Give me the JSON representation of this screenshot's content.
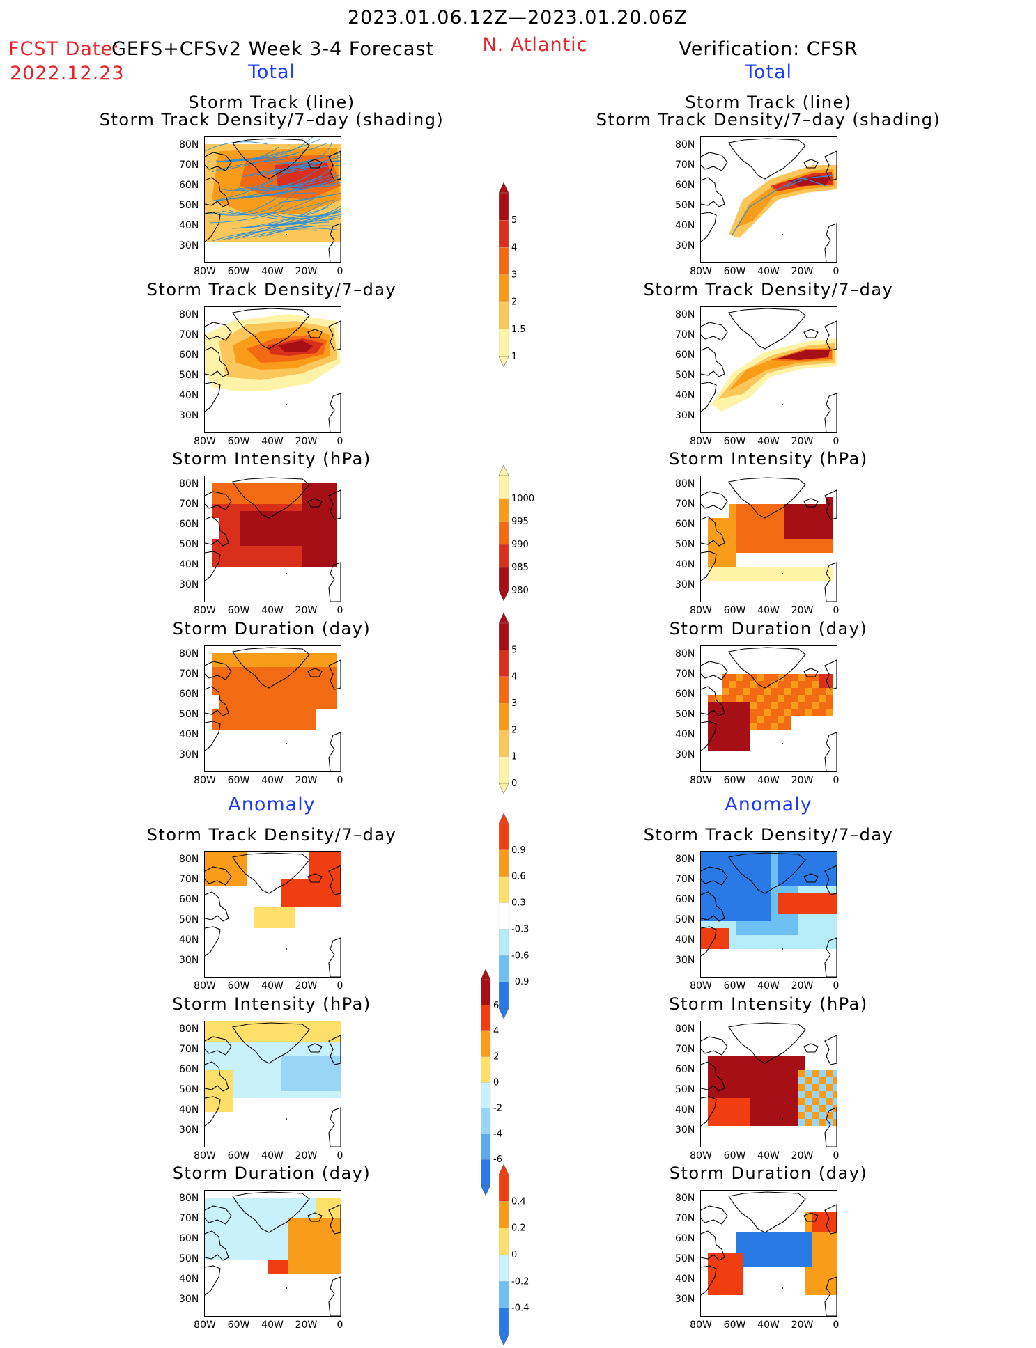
{
  "header": {
    "period": "2023.01.06.12Z—2023.01.20.06Z",
    "fcst_date_label": "FCST Date:",
    "fcst_date": "2022.12.23",
    "model": "GEFS+CFSv2 Week 3-4 Forecast",
    "region": "N. Atlantic",
    "verification": "Verification: CFSR"
  },
  "sections": {
    "total_label": "Total",
    "anomaly_label": "Anomaly"
  },
  "panel_titles": {
    "track_line": "Storm Track (line)",
    "track_shading": "Storm Track Density/7–day (shading)",
    "density": "Storm Track Density/7–day",
    "intensity": "Storm Intensity (hPa)",
    "duration": "Storm Duration (day)"
  },
  "axes": {
    "lat_ticks": [
      "80N",
      "70N",
      "60N",
      "50N",
      "40N",
      "30N"
    ],
    "lon_ticks": [
      "80W",
      "60W",
      "40W",
      "20W",
      "0"
    ]
  },
  "colorbars": {
    "density_total": {
      "labels": [
        "5",
        "4",
        "3",
        "2",
        "1.5",
        "1"
      ],
      "colors": [
        "#a50f15",
        "#d9301b",
        "#f26b12",
        "#f99c1a",
        "#fbc65a",
        "#fff3a8"
      ]
    },
    "intensity_total": {
      "labels": [
        "1000",
        "995",
        "990",
        "985",
        "980"
      ],
      "colors": [
        "#fff3a8",
        "#f99c1a",
        "#f26b12",
        "#d9301b",
        "#a50f15"
      ]
    },
    "duration_total": {
      "labels": [
        "5",
        "4",
        "3",
        "2",
        "1",
        "0"
      ],
      "colors": [
        "#a50f15",
        "#d9301b",
        "#f26b12",
        "#f99c1a",
        "#fbc65a",
        "#fff3a8"
      ]
    },
    "density_anom": {
      "labels": [
        "0.9",
        "0.6",
        "0.3",
        "-0.3",
        "-0.6",
        "-0.9"
      ],
      "colors": [
        "#f03d12",
        "#f99c1a",
        "#fddf6a",
        "#ffffff",
        "#b5ecf7",
        "#6ec0f2",
        "#2a7ae5"
      ]
    },
    "intensity_anom": {
      "labels": [
        "6",
        "4",
        "2",
        "0",
        "-2",
        "-4",
        "-6"
      ],
      "colors": [
        "#a50f15",
        "#f03d12",
        "#f99c1a",
        "#fddf6a",
        "#c9f1fb",
        "#99d6f6",
        "#5da8ef",
        "#2a7ae5"
      ]
    },
    "duration_anom": {
      "labels": [
        "0.4",
        "0.2",
        "0",
        "-0.2",
        "-0.4"
      ],
      "colors": [
        "#f03d12",
        "#f99c1a",
        "#fddf6a",
        "#c9f1fb",
        "#6ec0f2",
        "#2a7ae5"
      ]
    }
  },
  "palette": {
    "fcst_date_red": "#e8232a",
    "section_blue": "#1b3cff",
    "track_line": "#2d8fd8"
  }
}
